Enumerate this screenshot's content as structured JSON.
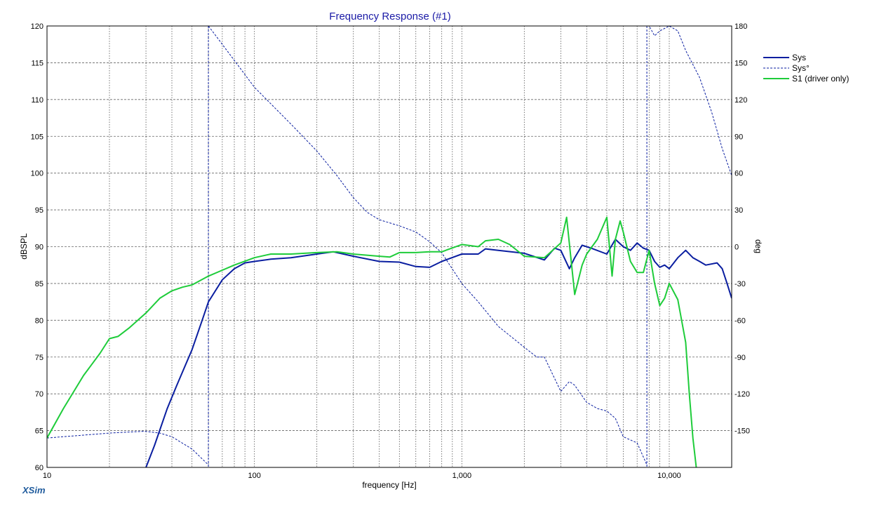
{
  "window": {
    "brand": "XSim"
  },
  "chart_data": {
    "type": "line",
    "title": "Frequency Response (#1)",
    "xlabel": "frequency [Hz]",
    "ylabel": "dBSPL",
    "y2label": "deg",
    "xscale": "log",
    "xlim": [
      10,
      20000
    ],
    "ylim": [
      60,
      120
    ],
    "y2lim": [
      -180,
      180
    ],
    "grid": true,
    "legend_position": "right",
    "x_ticks": [
      {
        "value": 10,
        "label": "10"
      },
      {
        "value": 100,
        "label": "100"
      },
      {
        "value": 1000,
        "label": "1,000"
      },
      {
        "value": 10000,
        "label": "10,000"
      }
    ],
    "y_ticks": [
      60,
      65,
      70,
      75,
      80,
      85,
      90,
      95,
      100,
      105,
      110,
      115,
      120
    ],
    "y2_ticks": [
      -150,
      -120,
      -90,
      -60,
      -30,
      0,
      30,
      60,
      90,
      120,
      150,
      180
    ],
    "series": [
      {
        "name": "Sys",
        "axis": "y",
        "color": "#0a1ea0",
        "style": "solid",
        "points": [
          [
            30,
            60
          ],
          [
            33,
            63
          ],
          [
            38,
            68
          ],
          [
            42,
            71
          ],
          [
            50,
            76
          ],
          [
            56,
            80
          ],
          [
            60,
            82.5
          ],
          [
            70,
            85.5
          ],
          [
            80,
            87
          ],
          [
            90,
            87.8
          ],
          [
            100,
            88
          ],
          [
            120,
            88.3
          ],
          [
            150,
            88.5
          ],
          [
            200,
            89
          ],
          [
            240,
            89.3
          ],
          [
            300,
            88.7
          ],
          [
            400,
            88
          ],
          [
            500,
            87.9
          ],
          [
            600,
            87.3
          ],
          [
            700,
            87.2
          ],
          [
            800,
            88
          ],
          [
            1000,
            89
          ],
          [
            1200,
            89
          ],
          [
            1300,
            89.7
          ],
          [
            1500,
            89.5
          ],
          [
            2000,
            89.1
          ],
          [
            2500,
            88.2
          ],
          [
            2800,
            89.8
          ],
          [
            3000,
            89.5
          ],
          [
            3300,
            87
          ],
          [
            3500,
            88.5
          ],
          [
            3800,
            90.2
          ],
          [
            4200,
            89.8
          ],
          [
            5000,
            89
          ],
          [
            5500,
            91
          ],
          [
            6000,
            90
          ],
          [
            6500,
            89.5
          ],
          [
            7000,
            90.5
          ],
          [
            7500,
            89.8
          ],
          [
            8000,
            89.5
          ],
          [
            8500,
            88
          ],
          [
            9000,
            87.2
          ],
          [
            9500,
            87.5
          ],
          [
            10000,
            87
          ],
          [
            11000,
            88.5
          ],
          [
            12000,
            89.5
          ],
          [
            13000,
            88.5
          ],
          [
            14000,
            88
          ],
          [
            15000,
            87.5
          ],
          [
            17000,
            87.8
          ],
          [
            18000,
            87
          ],
          [
            19000,
            85
          ],
          [
            20000,
            83
          ]
        ]
      },
      {
        "name": "Sys°",
        "axis": "y2",
        "color": "#0a1ea0",
        "style": "dashed",
        "points": [
          [
            10,
            -156
          ],
          [
            20,
            -152
          ],
          [
            29.5,
            -150.5
          ],
          [
            35,
            -152
          ],
          [
            40,
            -155
          ],
          [
            50,
            -165
          ],
          [
            60,
            -178
          ],
          [
            60.01,
            180
          ],
          [
            70,
            165
          ],
          [
            100,
            130
          ],
          [
            150,
            100
          ],
          [
            200,
            78
          ],
          [
            250,
            58
          ],
          [
            300,
            40
          ],
          [
            350,
            28
          ],
          [
            400,
            22
          ],
          [
            500,
            17
          ],
          [
            600,
            12
          ],
          [
            700,
            4
          ],
          [
            800,
            -5
          ],
          [
            1000,
            -30
          ],
          [
            1200,
            -45
          ],
          [
            1500,
            -65
          ],
          [
            2000,
            -82
          ],
          [
            2300,
            -90
          ],
          [
            2500,
            -90
          ],
          [
            3000,
            -118
          ],
          [
            3300,
            -110
          ],
          [
            3500,
            -113
          ],
          [
            4000,
            -127
          ],
          [
            4500,
            -132
          ],
          [
            5000,
            -134
          ],
          [
            5500,
            -140
          ],
          [
            6000,
            -155
          ],
          [
            7000,
            -160
          ],
          [
            7800,
            -178
          ],
          [
            7801,
            180
          ],
          [
            8000,
            180
          ],
          [
            8500,
            172
          ],
          [
            9000,
            176
          ],
          [
            9500,
            178
          ],
          [
            10000,
            180
          ],
          [
            11000,
            176
          ],
          [
            12000,
            160
          ],
          [
            14000,
            138
          ],
          [
            16000,
            110
          ],
          [
            18000,
            80
          ],
          [
            20000,
            58
          ]
        ]
      },
      {
        "name": "S1 (driver only)",
        "axis": "y",
        "color": "#1ecc3a",
        "style": "solid",
        "points": [
          [
            10,
            64
          ],
          [
            12,
            68
          ],
          [
            15,
            72.5
          ],
          [
            18,
            75.5
          ],
          [
            20,
            77.5
          ],
          [
            22,
            77.8
          ],
          [
            25,
            79
          ],
          [
            30,
            81
          ],
          [
            35,
            83
          ],
          [
            40,
            84
          ],
          [
            45,
            84.5
          ],
          [
            50,
            84.8
          ],
          [
            60,
            86
          ],
          [
            70,
            86.8
          ],
          [
            80,
            87.5
          ],
          [
            100,
            88.5
          ],
          [
            120,
            89
          ],
          [
            150,
            89
          ],
          [
            200,
            89.2
          ],
          [
            250,
            89.3
          ],
          [
            300,
            89
          ],
          [
            400,
            88.7
          ],
          [
            450,
            88.6
          ],
          [
            500,
            89.2
          ],
          [
            600,
            89.2
          ],
          [
            700,
            89.3
          ],
          [
            800,
            89.3
          ],
          [
            1000,
            90.3
          ],
          [
            1200,
            90
          ],
          [
            1300,
            90.8
          ],
          [
            1500,
            91
          ],
          [
            1700,
            90.3
          ],
          [
            2000,
            88.7
          ],
          [
            2500,
            88.5
          ],
          [
            3000,
            90.5
          ],
          [
            3200,
            94
          ],
          [
            3500,
            83.5
          ],
          [
            3800,
            87.5
          ],
          [
            4000,
            89
          ],
          [
            4500,
            91
          ],
          [
            5000,
            94
          ],
          [
            5300,
            86
          ],
          [
            5500,
            91
          ],
          [
            5800,
            93.5
          ],
          [
            6000,
            92
          ],
          [
            6500,
            88
          ],
          [
            7000,
            86.5
          ],
          [
            7500,
            86.5
          ],
          [
            8000,
            89.5
          ],
          [
            8500,
            85
          ],
          [
            9000,
            82
          ],
          [
            9500,
            83
          ],
          [
            10000,
            85
          ],
          [
            11000,
            82.8
          ],
          [
            12000,
            77
          ],
          [
            12500,
            70
          ],
          [
            13000,
            64
          ],
          [
            13500,
            60
          ]
        ]
      }
    ],
    "annotations": [
      {
        "type": "vline",
        "x": 60,
        "style": "dashed",
        "color": "#0a1ea0"
      },
      {
        "type": "vline",
        "x": 7800,
        "style": "dashed",
        "color": "#0a1ea0"
      }
    ]
  }
}
